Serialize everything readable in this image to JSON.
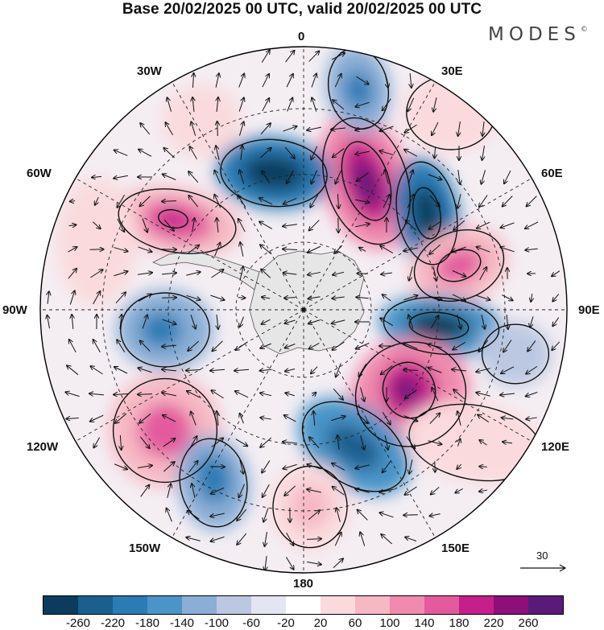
{
  "title": "Base 20/02/2025 00 UTC, valid 20/02/2025 00 UTC",
  "brand": "MODES",
  "brand_mark": "©",
  "map": {
    "projection": "south-polar-stereographic",
    "longitude_labels": [
      "0",
      "30E",
      "60E",
      "90E",
      "120E",
      "150E",
      "180",
      "150W",
      "120W",
      "90W",
      "60W",
      "30W"
    ],
    "reference_vector": {
      "value": "30"
    }
  },
  "colorbar": {
    "colors": [
      "#0b3c5d",
      "#1a5f8e",
      "#2b7bb5",
      "#4a94c7",
      "#8aaed6",
      "#bcc8e2",
      "#e3e6f2",
      "#ffffff",
      "#fadadd",
      "#f6b8c3",
      "#f08aae",
      "#e35a9e",
      "#c41f8a",
      "#8e0f7a",
      "#5a1a78"
    ],
    "tick_labels": [
      "-260",
      "-220",
      "-180",
      "-140",
      "-100",
      "-60",
      "-20",
      "20",
      "60",
      "100",
      "140",
      "180",
      "220",
      "260"
    ]
  }
}
